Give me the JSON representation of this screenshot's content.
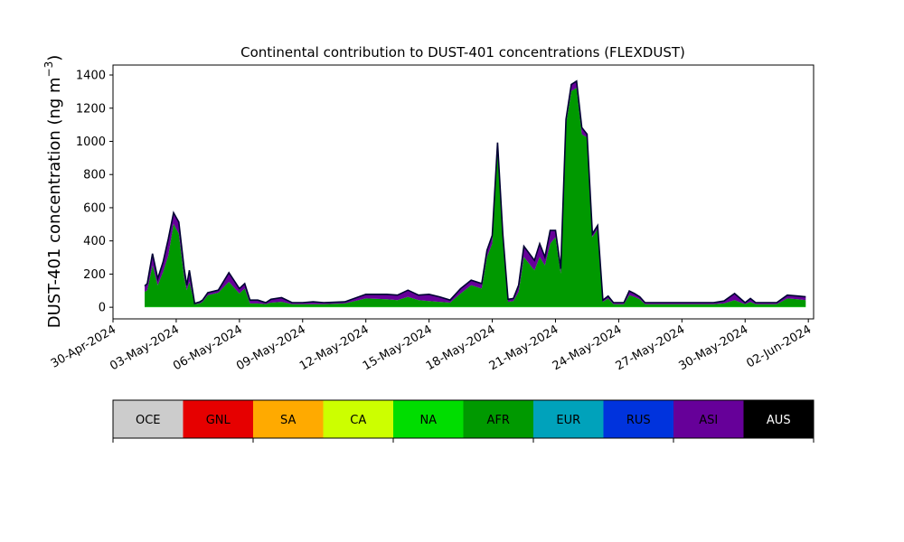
{
  "chart_data": {
    "type": "area",
    "title": "Continental contribution to DUST-401 concentrations (FLEXDUST)",
    "ylabel_main": "DUST-401 concentration (ng m",
    "ylabel_sup": "−3",
    "ylabel_close": ")",
    "xlabel": "",
    "ylim": [
      -70,
      1460
    ],
    "xlim": [
      "2024-04-30T00:00",
      "2024-06-02T06:00"
    ],
    "yticks": [
      0,
      200,
      400,
      600,
      800,
      1000,
      1200,
      1400
    ],
    "xticks": [
      "30-Apr-2024",
      "03-May-2024",
      "06-May-2024",
      "09-May-2024",
      "12-May-2024",
      "15-May-2024",
      "18-May-2024",
      "21-May-2024",
      "24-May-2024",
      "27-May-2024",
      "30-May-2024",
      "02-Jun-2024"
    ],
    "xtick_dates": [
      "2024-04-30",
      "2024-05-03",
      "2024-05-06",
      "2024-05-09",
      "2024-05-12",
      "2024-05-15",
      "2024-05-18",
      "2024-05-21",
      "2024-05-24",
      "2024-05-27",
      "2024-05-30",
      "2024-06-02"
    ],
    "x": [
      "2024-05-01T12:00",
      "2024-05-01T15:00",
      "2024-05-01T21:00",
      "2024-05-02T03:00",
      "2024-05-02T09:00",
      "2024-05-02T15:00",
      "2024-05-02T21:00",
      "2024-05-03T03:00",
      "2024-05-03T09:00",
      "2024-05-03T12:00",
      "2024-05-03T15:00",
      "2024-05-03T21:00",
      "2024-05-04T03:00",
      "2024-05-04T06:00",
      "2024-05-04T12:00",
      "2024-05-05T00:00",
      "2024-05-05T12:00",
      "2024-05-06T00:00",
      "2024-05-06T06:00",
      "2024-05-06T12:00",
      "2024-05-06T21:00",
      "2024-05-07T06:00",
      "2024-05-07T12:00",
      "2024-05-08T00:00",
      "2024-05-08T12:00",
      "2024-05-09T00:00",
      "2024-05-09T12:00",
      "2024-05-10T00:00",
      "2024-05-11T00:00",
      "2024-05-12T00:00",
      "2024-05-13T00:00",
      "2024-05-13T12:00",
      "2024-05-14T00:00",
      "2024-05-14T12:00",
      "2024-05-15T00:00",
      "2024-05-15T12:00",
      "2024-05-16T00:00",
      "2024-05-16T12:00",
      "2024-05-17T00:00",
      "2024-05-17T12:00",
      "2024-05-17T18:00",
      "2024-05-18T00:00",
      "2024-05-18T06:00",
      "2024-05-18T12:00",
      "2024-05-18T18:00",
      "2024-05-19T00:00",
      "2024-05-19T06:00",
      "2024-05-19T12:00",
      "2024-05-20T00:00",
      "2024-05-20T06:00",
      "2024-05-20T12:00",
      "2024-05-20T18:00",
      "2024-05-21T00:00",
      "2024-05-21T06:00",
      "2024-05-21T12:00",
      "2024-05-21T18:00",
      "2024-05-22T00:00",
      "2024-05-22T06:00",
      "2024-05-22T12:00",
      "2024-05-22T18:00",
      "2024-05-23T00:00",
      "2024-05-23T06:00",
      "2024-05-23T12:00",
      "2024-05-23T18:00",
      "2024-05-24T00:00",
      "2024-05-24T06:00",
      "2024-05-24T12:00",
      "2024-05-24T18:00",
      "2024-05-25T00:00",
      "2024-05-25T06:00",
      "2024-05-25T12:00",
      "2024-05-26T00:00",
      "2024-05-26T12:00",
      "2024-05-27T00:00",
      "2024-05-27T12:00",
      "2024-05-28T00:00",
      "2024-05-28T12:00",
      "2024-05-29T00:00",
      "2024-05-29T12:00",
      "2024-05-30T00:00",
      "2024-05-30T06:00",
      "2024-05-30T12:00",
      "2024-05-31T00:00",
      "2024-05-31T12:00",
      "2024-06-01T00:00",
      "2024-06-01T12:00",
      "2024-06-01T21:00"
    ],
    "series": [
      {
        "name": "NA",
        "color": "#00dd00",
        "values": [
          3,
          3,
          3,
          3,
          3,
          3,
          3,
          3,
          3,
          3,
          3,
          3,
          3,
          3,
          3,
          3,
          3,
          3,
          3,
          3,
          3,
          3,
          3,
          3,
          3,
          3,
          3,
          3,
          3,
          3,
          3,
          3,
          3,
          3,
          3,
          3,
          3,
          3,
          3,
          3,
          3,
          3,
          3,
          3,
          3,
          3,
          3,
          3,
          3,
          3,
          3,
          3,
          3,
          3,
          3,
          3,
          3,
          3,
          3,
          3,
          3,
          3,
          3,
          3,
          3,
          3,
          3,
          3,
          3,
          3,
          3,
          3,
          3,
          3,
          3,
          3,
          3,
          3,
          3,
          3,
          3,
          3,
          3,
          3,
          3,
          3,
          3
        ]
      },
      {
        "name": "AFR",
        "color": "#009900",
        "values": [
          90,
          100,
          250,
          130,
          210,
          310,
          500,
          440,
          180,
          100,
          150,
          15,
          20,
          30,
          70,
          85,
          150,
          80,
          110,
          20,
          20,
          15,
          25,
          30,
          15,
          15,
          15,
          15,
          20,
          50,
          45,
          40,
          60,
          40,
          35,
          30,
          25,
          80,
          130,
          110,
          300,
          380,
          940,
          400,
          30,
          35,
          90,
          300,
          220,
          300,
          250,
          380,
          420,
          200,
          1100,
          1300,
          1320,
          1040,
          1020,
          420,
          470,
          30,
          50,
          15,
          15,
          15,
          70,
          60,
          45,
          15,
          15,
          15,
          15,
          15,
          15,
          15,
          15,
          20,
          40,
          15,
          30,
          15,
          15,
          15,
          50,
          45,
          40
        ]
      },
      {
        "name": "ASI",
        "color": "#660099",
        "values": [
          35,
          40,
          70,
          40,
          60,
          100,
          67,
          70,
          50,
          30,
          70,
          5,
          10,
          10,
          15,
          15,
          55,
          30,
          30,
          20,
          20,
          10,
          20,
          25,
          10,
          10,
          15,
          10,
          10,
          25,
          30,
          30,
          40,
          30,
          40,
          30,
          15,
          30,
          30,
          30,
          40,
          50,
          50,
          40,
          15,
          15,
          40,
          65,
          60,
          80,
          50,
          80,
          40,
          30,
          30,
          40,
          40,
          40,
          20,
          20,
          20,
          10,
          15,
          10,
          10,
          10,
          25,
          20,
          15,
          10,
          10,
          10,
          10,
          10,
          10,
          10,
          10,
          15,
          40,
          10,
          20,
          10,
          10,
          10,
          20,
          20,
          20
        ]
      }
    ],
    "total_line_color": "#000033",
    "colorbar": {
      "categories": [
        "OCE",
        "GNL",
        "SA",
        "CA",
        "NA",
        "AFR",
        "EUR",
        "RUS",
        "ASI",
        "AUS"
      ],
      "colors": [
        "#cccccc",
        "#e60000",
        "#ffaa00",
        "#ccff00",
        "#00dd00",
        "#009900",
        "#00a2bb",
        "#0033dd",
        "#660099",
        "#000000"
      ],
      "text_colors": [
        "#000000",
        "#000000",
        "#000000",
        "#000000",
        "#000000",
        "#000000",
        "#000000",
        "#000000",
        "#000000",
        "#ffffff"
      ]
    }
  }
}
